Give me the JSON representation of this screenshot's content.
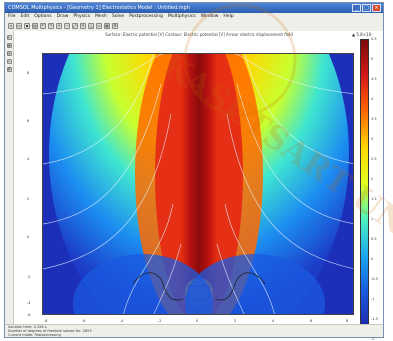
{
  "window": {
    "title": "COMSOL Multiphysics - [Geometry 1] Electrostatics Model : Untitled.mph",
    "menu": [
      "File",
      "Edit",
      "Options",
      "Draw",
      "Physics",
      "Mesh",
      "Solve",
      "Postprocessing",
      "Multiphysics",
      "Window",
      "Help"
    ]
  },
  "toolbar": {
    "icons": [
      "new-icon",
      "open-icon",
      "save-icon",
      "print-icon",
      "undo-icon",
      "redo-icon",
      "zoom-in-icon",
      "zoom-out-icon",
      "zoom-extents-icon",
      "draw-icon",
      "mesh-icon",
      "solve-icon",
      "plot-icon",
      "settings-icon"
    ]
  },
  "plot": {
    "title": "Surface: Electric potential [V]   Contour: Electric potential [V]   Arrow: electric displacement field",
    "colorbar_max": "▲ 5.8×10⁻",
    "colorbar_ticks": [
      "5.5",
      "5",
      "4.5",
      "4",
      "3.5",
      "3",
      "2.5",
      "2",
      "1.5",
      "1",
      "0.5",
      "0",
      "-0.5",
      "-1",
      "-1.5",
      "-2"
    ],
    "y_ticks": [
      "8",
      "6",
      "4",
      "2",
      "0",
      "-2",
      "-4",
      "-6"
    ],
    "x_ticks": [
      "-8",
      "-6",
      "-4",
      "-2",
      "0",
      "2",
      "4",
      "6",
      "8"
    ]
  },
  "status": {
    "line1": "Solution time: 0.328 s",
    "line2": "Number of degrees of freedom solved for: 2853",
    "line3": "Current mode: Postprocessing"
  },
  "watermark": {
    "text": "KASETSART UNIVERSITY"
  }
}
